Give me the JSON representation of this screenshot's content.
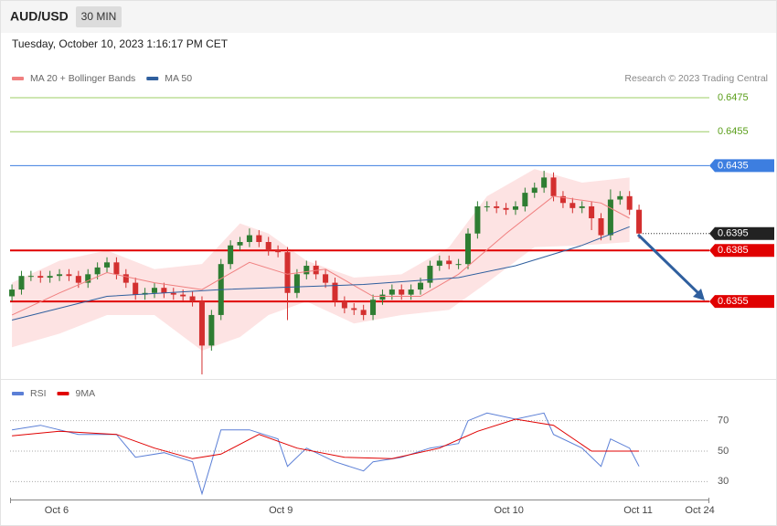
{
  "header": {
    "symbol": "AUD/USD",
    "interval": "30 MIN",
    "datetime": "Tuesday, October 10, 2023 1:16:17 PM CET"
  },
  "chart_data": [
    {
      "type": "candlestick",
      "credit": "Research © 2023 Trading Central",
      "up_color": "#2e7d32",
      "down_color": "#d32f2f",
      "xlim": [
        -0.2,
        73.4
      ],
      "ylim": [
        0.6312,
        0.6482
      ],
      "open": [
        0.6358,
        0.6362,
        0.637,
        0.637,
        0.6369,
        0.637,
        0.6371,
        0.637,
        0.6366,
        0.6371,
        0.6375,
        0.6378,
        0.6371,
        0.6366,
        0.6359,
        0.636,
        0.6363,
        0.636,
        0.6359,
        0.6358,
        0.6355,
        0.6329,
        0.6347,
        0.6377,
        0.6388,
        0.639,
        0.6394,
        0.639,
        0.6385,
        0.6384,
        0.636,
        0.6371,
        0.6376,
        0.6371,
        0.6366,
        0.6355,
        0.6351,
        0.635,
        0.6347,
        0.6356,
        0.6359,
        0.6362,
        0.6359,
        0.6362,
        0.6366,
        0.6376,
        0.6379,
        0.6377,
        0.6377,
        0.6395,
        0.6411,
        0.6411,
        0.641,
        0.6409,
        0.6411,
        0.6419,
        0.6422,
        0.6428,
        0.6417,
        0.6413,
        0.641,
        0.6411,
        0.6404,
        0.6394,
        0.6415,
        0.6417,
        0.6409
      ],
      "high": [
        0.6365,
        0.6373,
        0.6373,
        0.6373,
        0.6373,
        0.6374,
        0.6374,
        0.6373,
        0.6374,
        0.6378,
        0.6381,
        0.6381,
        0.6374,
        0.6369,
        0.6363,
        0.6366,
        0.6366,
        0.6363,
        0.6362,
        0.6361,
        0.6358,
        0.635,
        0.638,
        0.6391,
        0.6393,
        0.6398,
        0.6397,
        0.6393,
        0.6388,
        0.6387,
        0.6374,
        0.6379,
        0.6379,
        0.6374,
        0.6369,
        0.6358,
        0.6354,
        0.6353,
        0.6359,
        0.6362,
        0.6365,
        0.6365,
        0.6365,
        0.6369,
        0.6379,
        0.6382,
        0.6382,
        0.638,
        0.6398,
        0.6414,
        0.6414,
        0.6414,
        0.6413,
        0.6414,
        0.6422,
        0.6425,
        0.6432,
        0.6431,
        0.642,
        0.6416,
        0.6414,
        0.6414,
        0.6407,
        0.6421,
        0.642,
        0.642,
        0.6412
      ],
      "low": [
        0.6355,
        0.6359,
        0.6367,
        0.6366,
        0.6366,
        0.6367,
        0.6367,
        0.6363,
        0.6363,
        0.6368,
        0.6372,
        0.6368,
        0.6363,
        0.6356,
        0.6356,
        0.6357,
        0.6357,
        0.6356,
        0.6355,
        0.6352,
        0.6312,
        0.6326,
        0.6344,
        0.6374,
        0.6385,
        0.6387,
        0.6387,
        0.6382,
        0.6381,
        0.6344,
        0.6357,
        0.6368,
        0.6368,
        0.6363,
        0.6352,
        0.6348,
        0.6347,
        0.6344,
        0.6344,
        0.6353,
        0.6356,
        0.6356,
        0.6356,
        0.6359,
        0.6363,
        0.6373,
        0.6374,
        0.6374,
        0.6374,
        0.6392,
        0.6408,
        0.6407,
        0.6406,
        0.6406,
        0.6408,
        0.6416,
        0.6419,
        0.6414,
        0.641,
        0.6407,
        0.6407,
        0.6397,
        0.6391,
        0.6391,
        0.6412,
        0.6406,
        0.6392
      ],
      "close": [
        0.6362,
        0.637,
        0.637,
        0.6369,
        0.637,
        0.6371,
        0.637,
        0.6366,
        0.6371,
        0.6375,
        0.6378,
        0.6371,
        0.6366,
        0.6359,
        0.636,
        0.6363,
        0.636,
        0.6359,
        0.6358,
        0.6355,
        0.6329,
        0.6347,
        0.6377,
        0.6388,
        0.639,
        0.6394,
        0.639,
        0.6385,
        0.6384,
        0.636,
        0.6371,
        0.6376,
        0.6371,
        0.6366,
        0.6355,
        0.6351,
        0.635,
        0.6347,
        0.6356,
        0.6359,
        0.6362,
        0.6359,
        0.6362,
        0.6366,
        0.6376,
        0.6379,
        0.6377,
        0.6377,
        0.6395,
        0.6411,
        0.6411,
        0.641,
        0.6409,
        0.6411,
        0.6419,
        0.6422,
        0.6428,
        0.6417,
        0.6413,
        0.641,
        0.6411,
        0.6404,
        0.6394,
        0.6415,
        0.6417,
        0.6409,
        0.6395
      ],
      "series": [
        {
          "name": "MA 20 + Bollinger Bands",
          "color": "#f08080",
          "band_color": "#fde3e3",
          "x": [
            0,
            5,
            10,
            15,
            20,
            25,
            29,
            33,
            38,
            43,
            47,
            52,
            57,
            62,
            65
          ],
          "values": [
            0.6347,
            0.636,
            0.6372,
            0.6366,
            0.6362,
            0.6378,
            0.6371,
            0.6374,
            0.6358,
            0.6358,
            0.6371,
            0.6395,
            0.6417,
            0.6413,
            0.6404
          ],
          "band_x": [
            0,
            5,
            10,
            15,
            20,
            24,
            27,
            31,
            36,
            41,
            46,
            50,
            55,
            60,
            65
          ],
          "upper": [
            0.6366,
            0.6379,
            0.6385,
            0.6374,
            0.6377,
            0.6401,
            0.6395,
            0.6379,
            0.6369,
            0.6371,
            0.6387,
            0.6417,
            0.6433,
            0.6425,
            0.6428
          ],
          "lower": [
            0.6328,
            0.6336,
            0.6347,
            0.6347,
            0.6326,
            0.6334,
            0.6347,
            0.6355,
            0.6342,
            0.6347,
            0.635,
            0.6366,
            0.6387,
            0.6388,
            0.639
          ]
        },
        {
          "name": "MA 50",
          "color": "#2f5f9e",
          "x": [
            0,
            10,
            22,
            37,
            47,
            53,
            60,
            65
          ],
          "values": [
            0.6344,
            0.6358,
            0.6362,
            0.6365,
            0.6369,
            0.6376,
            0.6388,
            0.6399
          ]
        }
      ],
      "levels": [
        {
          "value": 0.6475,
          "color": "#9ccc65",
          "text_color": "#5a9e1a",
          "style": "thin",
          "tag": false
        },
        {
          "value": 0.6455,
          "color": "#9ccc65",
          "text_color": "#5a9e1a",
          "style": "thin",
          "tag": false
        },
        {
          "value": 0.6435,
          "color": "#3d7ee0",
          "text_color": "#ffffff",
          "style": "thin",
          "tag": true
        },
        {
          "value": 0.6395,
          "color": "#222222",
          "text_color": "#ffffff",
          "style": "dotted",
          "tag": true
        },
        {
          "value": 0.6385,
          "color": "#e00000",
          "text_color": "#ffffff",
          "style": "thick",
          "tag": true
        },
        {
          "value": 0.6355,
          "color": "#e00000",
          "text_color": "#ffffff",
          "style": "thick",
          "tag": true
        }
      ]
    },
    {
      "type": "line",
      "xlim": [
        -0.2,
        73.4
      ],
      "ylim": [
        20,
        80
      ],
      "yticks": [
        30,
        50,
        70
      ],
      "grid": "dotted",
      "xticks": [
        {
          "value": 4.7,
          "label": "Oct 6"
        },
        {
          "value": 28.3,
          "label": "Oct 9"
        },
        {
          "value": 52.3,
          "label": "Oct 10"
        },
        {
          "value": 65.9,
          "label": "Oct 11"
        },
        {
          "value": 72.4,
          "label": "Oct 24"
        }
      ],
      "series": [
        {
          "name": "RSI",
          "color": "#5b7fd6",
          "x": [
            0,
            3,
            7,
            11,
            13,
            16,
            19,
            20,
            21,
            22,
            25,
            28,
            29,
            31,
            34,
            37,
            38,
            41,
            44,
            47,
            48,
            50,
            53,
            56,
            57,
            60,
            62,
            63,
            65,
            66
          ],
          "values": [
            64,
            67,
            61,
            61,
            46,
            49,
            43,
            22,
            43,
            64,
            64,
            58,
            40,
            52,
            43,
            37,
            43,
            46,
            52,
            55,
            70,
            75,
            71,
            75,
            61,
            52,
            40,
            58,
            52,
            40
          ]
        },
        {
          "name": "9MA",
          "color": "#e00000",
          "x": [
            0,
            5,
            11,
            15,
            19,
            22,
            26,
            30,
            35,
            40,
            45,
            49,
            53,
            57,
            61,
            66
          ],
          "values": [
            60,
            63,
            61,
            52,
            45,
            48,
            61,
            52,
            46,
            45,
            52,
            63,
            71,
            67,
            50,
            50
          ]
        }
      ]
    }
  ]
}
